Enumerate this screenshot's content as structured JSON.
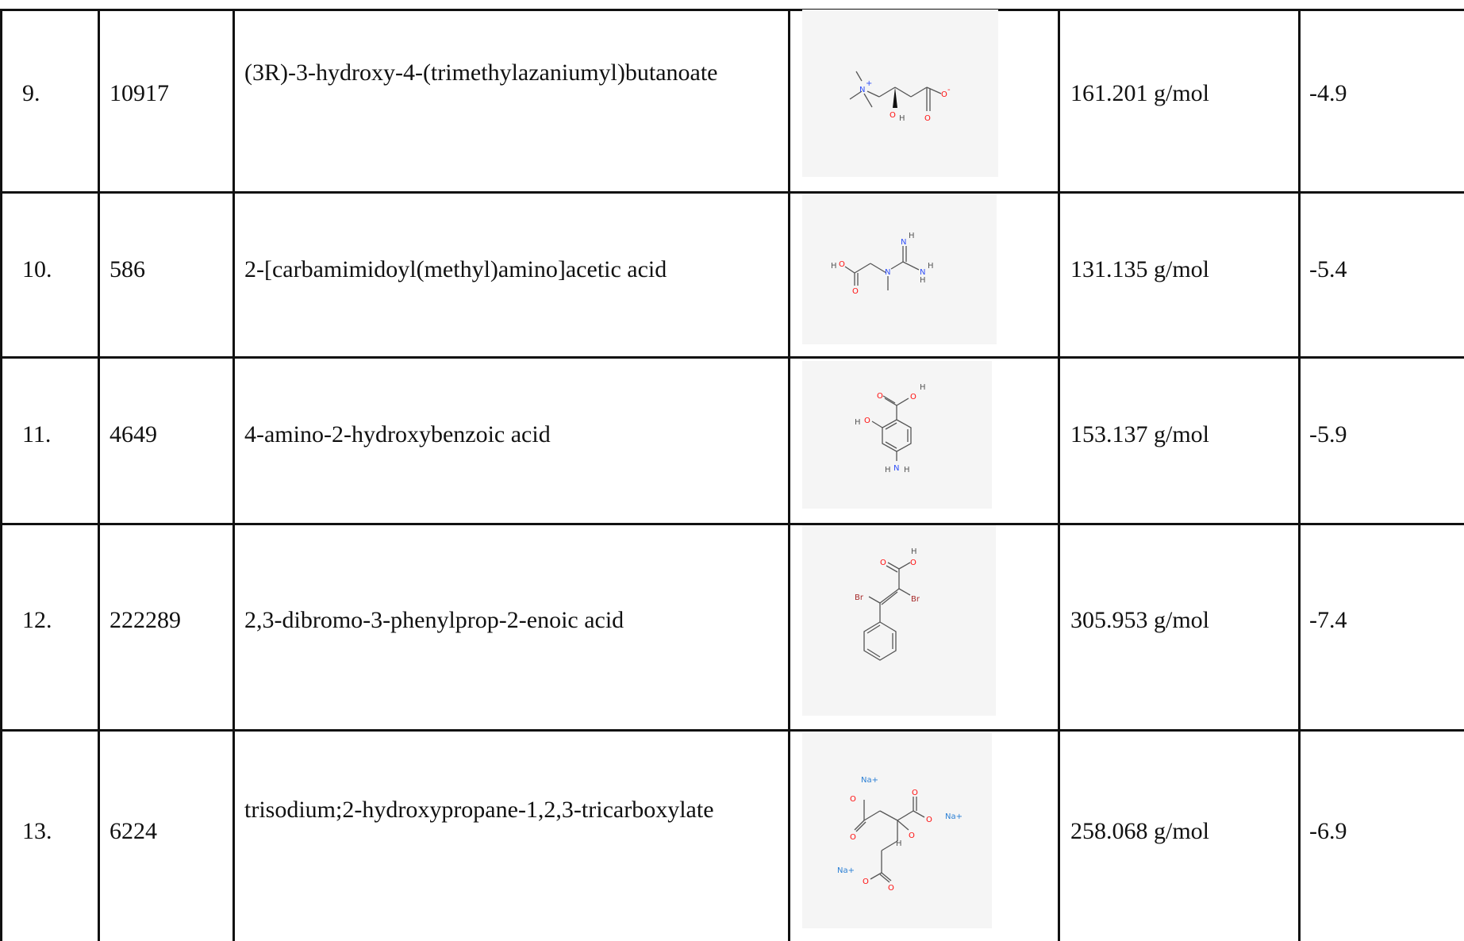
{
  "rows": [
    {
      "no": "9.",
      "cid": "10917",
      "name": "(3R)-3-hydroxy-4-(trimethylazaniumyl)butanoate",
      "weight": "161.201 g/mol",
      "score": "-4.9"
    },
    {
      "no": "10.",
      "cid": "586",
      "name": "2-[carbamimidoyl(methyl)amino]acetic acid",
      "weight": "131.135 g/mol",
      "score": "-5.4"
    },
    {
      "no": "11.",
      "cid": "4649",
      "name": "4-amino-2-hydroxybenzoic acid",
      "weight": "153.137 g/mol",
      "score": "-5.9"
    },
    {
      "no": "12.",
      "cid": "222289",
      "name": "2,3-dibromo-3-phenylprop-2-enoic acid",
      "weight": "305.953 g/mol",
      "score": "-7.4"
    },
    {
      "no": "13.",
      "cid": "6224",
      "name": "trisodium;2-hydroxypropane-1,2,3-tricarboxylate",
      "weight": "258.068 g/mol",
      "score": "-6.9"
    }
  ],
  "atoms": {
    "N": "N",
    "O": "O",
    "H": "H",
    "Br": "Br",
    "Na": "Na",
    "plus": "+",
    "minus": "-",
    "NH": "N",
    "Naplus": "Na+"
  },
  "colors": {
    "oxygen": "#ff0d0d",
    "nitrogen": "#3050f8",
    "bromine": "#a62929",
    "sodium": "#2a7fd4",
    "bond": "#555555",
    "grid": "#111111",
    "thumb_bg": "#f5f5f5"
  }
}
